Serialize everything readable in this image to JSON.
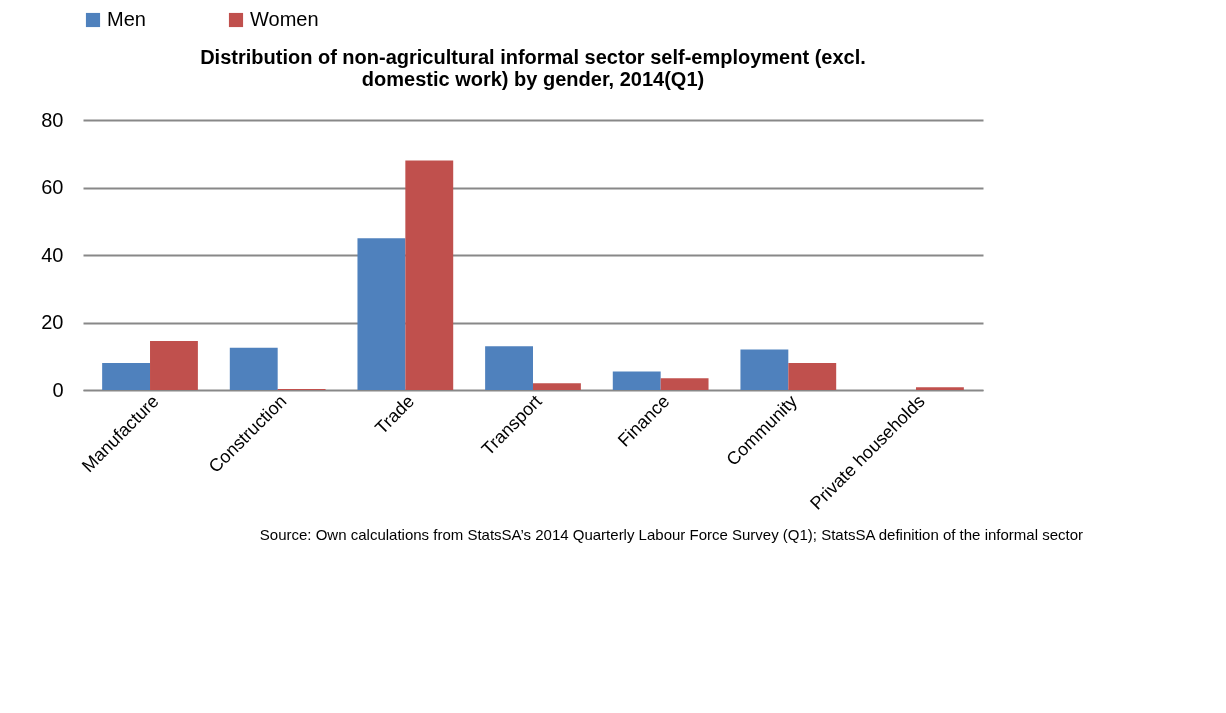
{
  "chart_data": {
    "type": "bar",
    "title": "Distribution of non-agricultural informal sector self-employment (excl. domestic work) by gender, 2014(Q1)",
    "categories": [
      "Manufacture",
      "Construction",
      "Trade",
      "Transport",
      "Finance",
      "Community",
      "Private households"
    ],
    "series": [
      {
        "name": "Men",
        "color": "#4f81bd",
        "values": [
          8,
          12.5,
          45,
          13,
          5.5,
          12,
          0
        ]
      },
      {
        "name": "Women",
        "color": "#c0504d",
        "values": [
          14.5,
          0.3,
          68,
          2,
          3.5,
          8,
          0.8
        ]
      }
    ],
    "ylim": [
      0,
      80
    ],
    "yticks": [
      0,
      20,
      40,
      60,
      80
    ],
    "grid": "y",
    "legend": "top",
    "annotations": [
      "Source: Own calculations from StatsSA’s 2014 Quarterly Labour Force Survey (Q1); StatsSA definition of the informal sector"
    ]
  }
}
